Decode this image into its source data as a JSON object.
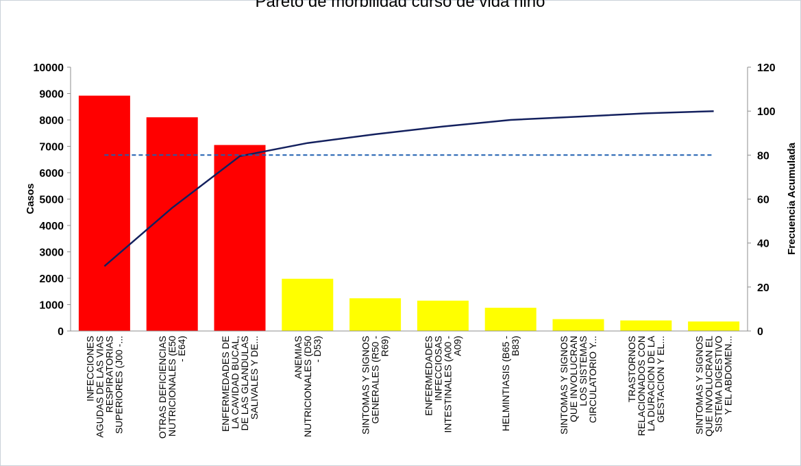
{
  "chart_data": {
    "type": "bar",
    "title": "Pareto de morbilidad curso de vida niño",
    "ylabel": "Casos",
    "ylabel_right": "Frecuencia Acumulada",
    "ylim": [
      0,
      10000
    ],
    "ylim_right": [
      0,
      120
    ],
    "yticks": [
      0,
      1000,
      2000,
      3000,
      4000,
      5000,
      6000,
      7000,
      8000,
      9000,
      10000
    ],
    "yticks_right": [
      0,
      20,
      40,
      60,
      80,
      100,
      120
    ],
    "categories": [
      [
        "INFECCIONES",
        "AGUDAS DE LAS VIAS",
        "RESPIRATORIAS",
        "SUPERIORES (J00 -..."
      ],
      [
        "OTRAS DEFICIENCIAS",
        "NUTRICIONALES (E50",
        "- E64)"
      ],
      [
        "ENFERMEDADES DE",
        "LA CAVIDAD BUCAL,",
        "DE LAS GLANDULAS",
        "SALIVALES Y DE..."
      ],
      [
        "ANEMIAS",
        "NUTRICIONALES (D50",
        "- D53)"
      ],
      [
        "SINTOMAS Y SIGNOS",
        "GENERALES (R50 -",
        "R69)"
      ],
      [
        "ENFERMEDADES",
        "INFECCIOSAS",
        "INTESTINALES (A00 -",
        "A09)"
      ],
      [
        "HELMINTIASIS (B65 -",
        "B83)"
      ],
      [
        "SINTOMAS Y SIGNOS",
        "QUE INVOLUCRAN",
        "LOS SISTEMAS",
        "CIRCULATORIO Y..."
      ],
      [
        "TRASTORNOS",
        "RELACIONADOS CON",
        "LA DURACION DE LA",
        "GESTACION Y EL..."
      ],
      [
        "SINTOMAS Y SIGNOS",
        "QUE INVOLUCRAN EL",
        "SISTEMA DIGESTIVO",
        "Y EL ABDOMEN..."
      ]
    ],
    "series": [
      {
        "type": "bar",
        "axis": "left",
        "values": [
          8920,
          8100,
          7050,
          1980,
          1240,
          1150,
          880,
          450,
          400,
          360
        ],
        "colors": [
          "#ff0000",
          "#ff0000",
          "#ff0000",
          "#ffff00",
          "#ffff00",
          "#ffff00",
          "#ffff00",
          "#ffff00",
          "#ffff00",
          "#ffff00"
        ]
      },
      {
        "type": "line",
        "axis": "right",
        "values": [
          29.5,
          56,
          79.5,
          85.5,
          89.5,
          93,
          96,
          97.5,
          99,
          100
        ],
        "color": "#13205e"
      },
      {
        "type": "line",
        "axis": "right",
        "style": "dashed",
        "values": [
          80,
          80,
          80,
          80,
          80,
          80,
          80,
          80,
          80,
          80
        ],
        "color": "#1f5fb0"
      }
    ],
    "grid": false,
    "legend": "none"
  }
}
